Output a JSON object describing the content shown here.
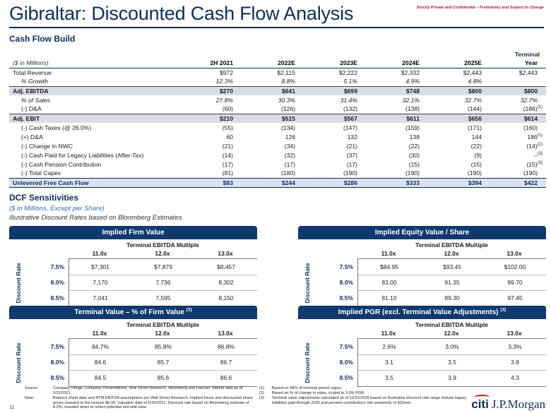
{
  "header": {
    "title": "Gibraltar: Discounted Cash Flow Analysis",
    "confidential": "Strictly Private and Confidential – Preliminary and Subject to Change"
  },
  "cash_flow": {
    "section_title": "Cash Flow Build",
    "units": "($ in Millions)",
    "terminal_top": "Terminal",
    "columns": [
      "2H 2021",
      "2022E",
      "2023E",
      "2024E",
      "2025E",
      "Year"
    ],
    "rows": [
      {
        "label": "Total Revenue",
        "values": [
          "$972",
          "$2,115",
          "$2,222",
          "$2,332",
          "$2,443",
          "$2,443"
        ]
      },
      {
        "label": "% Growth",
        "values": [
          "12.3%",
          "8.8%",
          "5.1%",
          "4.9%",
          "4.8%",
          ""
        ]
      },
      {
        "label": "Adj. EBITDA",
        "values": [
          "$270",
          "$641",
          "$699",
          "$748",
          "$800",
          "$800"
        ]
      },
      {
        "label": "% of Sales",
        "values": [
          "27.8%",
          "30.3%",
          "31.4%",
          "32.1%",
          "32.7%",
          "32.7%"
        ]
      },
      {
        "label": "(-) D&A",
        "values": [
          "(60)",
          "(126)",
          "(132)",
          "(138)",
          "(144)",
          "(186)"
        ],
        "terminal_fn": "(1)"
      },
      {
        "label": "Adj. EBIT",
        "values": [
          "$210",
          "$515",
          "$567",
          "$611",
          "$656",
          "$614"
        ]
      },
      {
        "label": "(-) Cash Taxes (@ 26.0%)",
        "values": [
          "(55)",
          "(134)",
          "(147)",
          "(159)",
          "(171)",
          "(160)"
        ]
      },
      {
        "label": "(+) D&A",
        "values": [
          "60",
          "126",
          "132",
          "138",
          "144",
          "186"
        ],
        "terminal_fn": "(1)"
      },
      {
        "label": "(-) Change in NWC",
        "values": [
          "(21)",
          "(34)",
          "(21)",
          "(22)",
          "(22)",
          "(14)"
        ],
        "terminal_fn": "(2)"
      },
      {
        "label": "(-) Cash Paid for Legacy Liabilities (After-Tax)",
        "values": [
          "(14)",
          "(32)",
          "(37)",
          "(30)",
          "(9)",
          "--"
        ],
        "terminal_fn": "(3)"
      },
      {
        "label": "(-) Cash Pension Contribution",
        "values": [
          "(17)",
          "(17)",
          "(17)",
          "(15)",
          "(15)",
          "(15)"
        ],
        "terminal_fn": "(3)"
      },
      {
        "label": "(-) Total Capex",
        "values": [
          "(81)",
          "(180)",
          "(190)",
          "(190)",
          "(190)",
          "(190)"
        ]
      },
      {
        "label": "Unlevered Free Cash Flow",
        "values": [
          "$83",
          "$244",
          "$286",
          "$333",
          "$394",
          "$422"
        ]
      }
    ]
  },
  "dcf": {
    "section_title": "DCF Sensitivities",
    "subtitle": "($ in Millions, Except per Share)",
    "note": "Illustrative Discount Rates based on Bloomberg Estimates",
    "multiple_label": "Terminal EBITDA Multiple",
    "rate_label": "Discount Rate",
    "multiples": [
      "11.0x",
      "12.0x",
      "13.0x"
    ],
    "rates": [
      "7.5%",
      "8.0%",
      "8.5%"
    ],
    "panels": [
      {
        "title": "Implied Firm Value",
        "fn": "",
        "grid": [
          [
            "$7,301",
            "$7,879",
            "$8,457"
          ],
          [
            "7,170",
            "7,736",
            "8,302"
          ],
          [
            "7,041",
            "7,595",
            "8,150"
          ]
        ]
      },
      {
        "title": "Implied Equity Value / Share",
        "fn": "",
        "grid": [
          [
            "$84.95",
            "$93.45",
            "$102.00"
          ],
          [
            "83.00",
            "91.35",
            "99.70"
          ],
          [
            "81.10",
            "89.30",
            "97.45"
          ]
        ]
      },
      {
        "title": "Terminal Value – % of Firm Value",
        "fn": "(3)",
        "grid": [
          [
            "84.7%",
            "85.8%",
            "86.8%"
          ],
          [
            "84.6",
            "85.7",
            "86.7"
          ],
          [
            "84.5",
            "85.6",
            "86.6"
          ]
        ]
      },
      {
        "title": "Implied PGR (excl. Terminal Value Adjustments)",
        "fn": "(3)",
        "grid": [
          [
            "2.6%",
            "3.0%",
            "3.3%"
          ],
          [
            "3.1",
            "3.5",
            "3.8"
          ],
          [
            "3.5",
            "3.9",
            "4.3"
          ]
        ]
      }
    ]
  },
  "footer": {
    "source_label": "Source:",
    "source_text": "Company Filings, Company Presentations, Wall Street Research, Bloomberg and FactSet. Market data as of 2/22/2021.",
    "note_label": "Note:",
    "note_text": "Balance sheet data and NTM EBITDA assumptions per Wall Street Research. Implied future and discounted share prices rounded to the nearest $0.05. Valuation date of 6/30/2021. Discount rate based on Bloomberg estimate of 8.2%, rounded down to reflect potential sell-side view.",
    "notes": [
      {
        "n": "(1)",
        "t": "Based on 98% of terminal period capex."
      },
      {
        "n": "(2)",
        "t": "Based on % of change in sales, scaled to 3.0% PGR."
      },
      {
        "n": "(3)",
        "t": "Terminal value adjustments calculated as of 12/31/2025 based on illustrative discount rate range include legacy liabilities paid through 2032 and pension contributions into perpetuity of $15mm."
      }
    ],
    "page_number": "11",
    "logo_citi": "citi",
    "logo_jpm": "J.P.Morgan"
  }
}
